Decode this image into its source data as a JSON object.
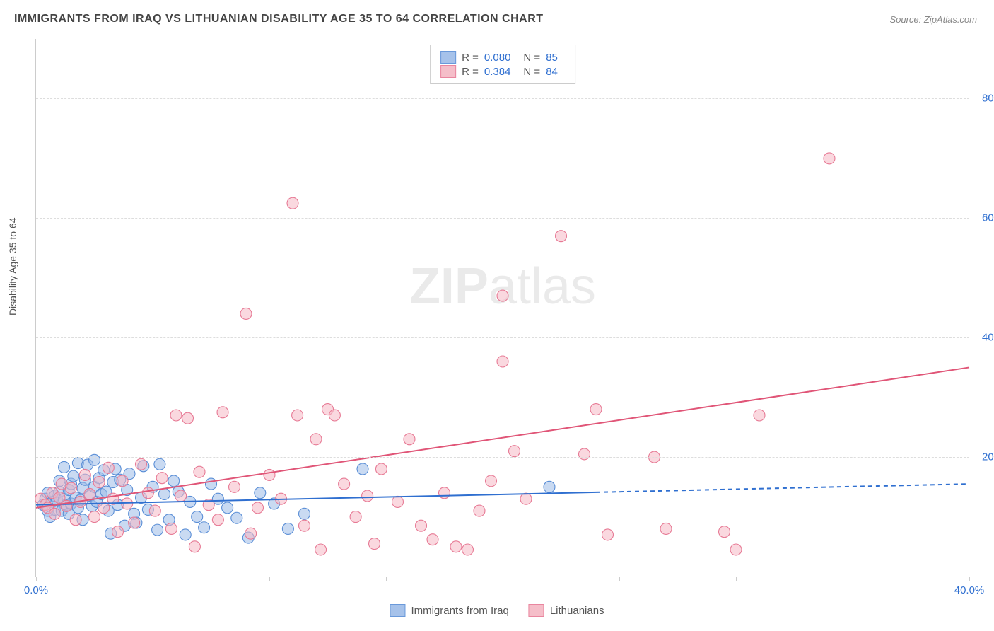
{
  "title": "IMMIGRANTS FROM IRAQ VS LITHUANIAN DISABILITY AGE 35 TO 64 CORRELATION CHART",
  "source_prefix": "Source: ",
  "source_name": "ZipAtlas.com",
  "y_axis_label": "Disability Age 35 to 64",
  "watermark_bold": "ZIP",
  "watermark_light": "atlas",
  "chart": {
    "type": "scatter",
    "xlim": [
      0,
      40
    ],
    "ylim": [
      0,
      90
    ],
    "x_tick_step": 5,
    "x_tick_labels": {
      "0": "0.0%",
      "40": "40.0%"
    },
    "y_ticks": [
      20,
      40,
      60,
      80
    ],
    "y_tick_labels": {
      "20": "20.0%",
      "40": "40.0%",
      "60": "60.0%",
      "80": "80.0%"
    },
    "background_color": "#ffffff",
    "grid_color": "#dddddd",
    "axis_color": "#cccccc",
    "tick_label_color": "#2f6fd0",
    "axis_label_fontsize": 14,
    "tick_label_fontsize": 15,
    "marker_radius": 8,
    "marker_stroke_width": 1.1,
    "series": [
      {
        "name": "Immigrants from Iraq",
        "fill": "#9dbce8",
        "fill_opacity": 0.55,
        "stroke": "#5a8ed6",
        "R": "0.080",
        "N": "85",
        "trend": {
          "y_at_xmin": 12.0,
          "y_at_xmax": 15.5,
          "solid_until_x": 24,
          "stroke": "#2f6fd0",
          "width": 2,
          "dash": "6,5"
        },
        "points": [
          [
            0.3,
            12
          ],
          [
            0.4,
            13
          ],
          [
            0.5,
            11
          ],
          [
            0.5,
            14
          ],
          [
            0.6,
            10
          ],
          [
            0.7,
            12.5
          ],
          [
            0.8,
            13.5
          ],
          [
            0.8,
            11.2
          ],
          [
            0.9,
            12.8
          ],
          [
            1.0,
            14.2
          ],
          [
            1.0,
            16
          ],
          [
            1.1,
            11
          ],
          [
            1.2,
            13
          ],
          [
            1.2,
            18.3
          ],
          [
            1.3,
            12
          ],
          [
            1.4,
            14.5
          ],
          [
            1.4,
            10.5
          ],
          [
            1.5,
            15.5
          ],
          [
            1.5,
            12.2
          ],
          [
            1.6,
            16.8
          ],
          [
            1.7,
            13.2
          ],
          [
            1.8,
            11.5
          ],
          [
            1.8,
            19
          ],
          [
            1.9,
            12.8
          ],
          [
            2.0,
            14.8
          ],
          [
            2.0,
            9.5
          ],
          [
            2.1,
            16.2
          ],
          [
            2.2,
            18.7
          ],
          [
            2.3,
            13.5
          ],
          [
            2.4,
            11.8
          ],
          [
            2.5,
            15.0
          ],
          [
            2.5,
            19.5
          ],
          [
            2.6,
            12.5
          ],
          [
            2.7,
            16.5
          ],
          [
            2.8,
            13.8
          ],
          [
            2.9,
            17.8
          ],
          [
            3.0,
            14.2
          ],
          [
            3.1,
            11.0
          ],
          [
            3.2,
            7.2
          ],
          [
            3.3,
            15.8
          ],
          [
            3.4,
            18.0
          ],
          [
            3.5,
            12.0
          ],
          [
            3.6,
            16.2
          ],
          [
            3.8,
            8.5
          ],
          [
            3.9,
            14.5
          ],
          [
            4.0,
            17.2
          ],
          [
            4.2,
            10.5
          ],
          [
            4.3,
            9.0
          ],
          [
            4.5,
            13.2
          ],
          [
            4.6,
            18.5
          ],
          [
            4.8,
            11.2
          ],
          [
            5.0,
            15.0
          ],
          [
            5.2,
            7.8
          ],
          [
            5.3,
            18.8
          ],
          [
            5.5,
            13.8
          ],
          [
            5.7,
            9.5
          ],
          [
            5.9,
            16.0
          ],
          [
            6.1,
            14.2
          ],
          [
            6.4,
            7.0
          ],
          [
            6.6,
            12.5
          ],
          [
            6.9,
            10.0
          ],
          [
            7.2,
            8.2
          ],
          [
            7.5,
            15.5
          ],
          [
            7.8,
            13.0
          ],
          [
            8.2,
            11.5
          ],
          [
            8.6,
            9.8
          ],
          [
            9.1,
            6.5
          ],
          [
            9.6,
            14.0
          ],
          [
            10.2,
            12.2
          ],
          [
            10.8,
            8.0
          ],
          [
            11.5,
            10.5
          ],
          [
            14.0,
            18.0
          ],
          [
            22.0,
            15.0
          ]
        ]
      },
      {
        "name": "Lithuanians",
        "fill": "#f5b8c4",
        "fill_opacity": 0.55,
        "stroke": "#e77a95",
        "R": "0.384",
        "N": "84",
        "trend": {
          "y_at_xmin": 11.5,
          "y_at_xmax": 35.0,
          "solid_until_x": 40,
          "stroke": "#e05577",
          "width": 2
        },
        "points": [
          [
            0.2,
            13
          ],
          [
            0.4,
            12
          ],
          [
            0.5,
            11.5
          ],
          [
            0.7,
            14
          ],
          [
            0.8,
            10.5
          ],
          [
            1.0,
            13.2
          ],
          [
            1.1,
            15.5
          ],
          [
            1.3,
            11.8
          ],
          [
            1.5,
            14.8
          ],
          [
            1.7,
            9.5
          ],
          [
            1.9,
            12.5
          ],
          [
            2.1,
            17.0
          ],
          [
            2.3,
            13.8
          ],
          [
            2.5,
            10.0
          ],
          [
            2.7,
            15.8
          ],
          [
            2.9,
            11.5
          ],
          [
            3.1,
            18.2
          ],
          [
            3.3,
            13.0
          ],
          [
            3.5,
            7.5
          ],
          [
            3.7,
            16.0
          ],
          [
            3.9,
            12.2
          ],
          [
            4.2,
            9.0
          ],
          [
            4.5,
            18.8
          ],
          [
            4.8,
            14.0
          ],
          [
            5.1,
            11.0
          ],
          [
            5.4,
            16.5
          ],
          [
            5.8,
            8.0
          ],
          [
            6.0,
            27.0
          ],
          [
            6.2,
            13.5
          ],
          [
            6.5,
            26.5
          ],
          [
            6.8,
            5.0
          ],
          [
            7.0,
            17.5
          ],
          [
            7.4,
            12.0
          ],
          [
            7.8,
            9.5
          ],
          [
            8.0,
            27.5
          ],
          [
            8.5,
            15.0
          ],
          [
            9.0,
            44.0
          ],
          [
            9.2,
            7.2
          ],
          [
            9.5,
            11.5
          ],
          [
            10.0,
            17.0
          ],
          [
            10.5,
            13.0
          ],
          [
            11.0,
            62.5
          ],
          [
            11.2,
            27.0
          ],
          [
            11.5,
            8.5
          ],
          [
            12.0,
            23.0
          ],
          [
            12.2,
            4.5
          ],
          [
            12.5,
            28.0
          ],
          [
            12.8,
            27.0
          ],
          [
            13.2,
            15.5
          ],
          [
            13.7,
            10.0
          ],
          [
            14.2,
            13.5
          ],
          [
            14.5,
            5.5
          ],
          [
            14.8,
            18.0
          ],
          [
            15.5,
            12.5
          ],
          [
            16.0,
            23.0
          ],
          [
            16.5,
            8.5
          ],
          [
            17.0,
            6.2
          ],
          [
            17.5,
            14.0
          ],
          [
            18.0,
            5.0
          ],
          [
            18.5,
            4.5
          ],
          [
            19.0,
            11.0
          ],
          [
            19.5,
            16.0
          ],
          [
            20.0,
            47.0
          ],
          [
            20.0,
            36.0
          ],
          [
            20.5,
            21.0
          ],
          [
            21.0,
            13.0
          ],
          [
            22.5,
            57.0
          ],
          [
            23.5,
            20.5
          ],
          [
            24.0,
            28.0
          ],
          [
            24.5,
            7.0
          ],
          [
            26.5,
            20.0
          ],
          [
            27.0,
            8.0
          ],
          [
            29.5,
            7.5
          ],
          [
            30.0,
            4.5
          ],
          [
            31.0,
            27.0
          ],
          [
            34.0,
            70.0
          ]
        ]
      }
    ]
  },
  "legend": {
    "r_prefix": "R = ",
    "n_prefix": "N = "
  }
}
